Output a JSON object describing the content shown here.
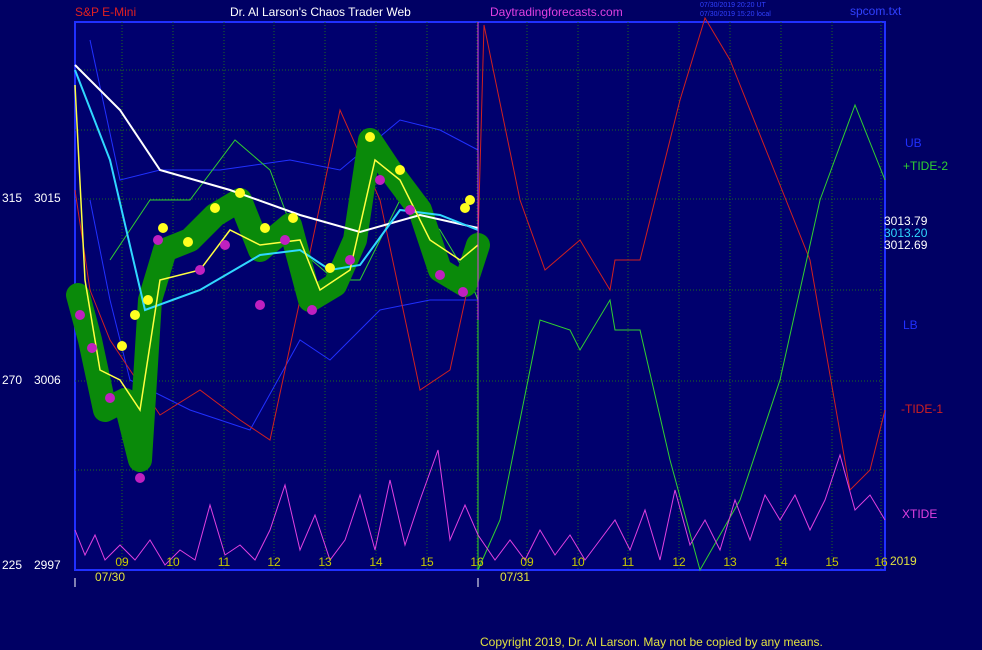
{
  "header": {
    "symbol": "S&P E-Mini",
    "title": "Dr. Al Larson's Chaos Trader Web",
    "site": "Daytradingforecasts.com",
    "timestamp_utc": "07/30/2019 20:20 UT",
    "timestamp_local": "07/30/2019 15:20 local",
    "file": "spcom.txt"
  },
  "y_labels": [
    {
      "left": "315",
      "right": "3015"
    },
    {
      "left": "270",
      "right": "3006"
    },
    {
      "left": "225",
      "right": "2997"
    }
  ],
  "x_labels": [
    "09",
    "10",
    "11",
    "12",
    "13",
    "14",
    "15",
    "16",
    "09",
    "10",
    "11",
    "12",
    "13",
    "14",
    "15",
    "16"
  ],
  "dates": [
    "07/30",
    "07/31"
  ],
  "year": "2019",
  "price_labels": [
    "3013.79",
    "3013.20",
    "3012.69"
  ],
  "right_labels": [
    "UB",
    "+TIDE-2",
    "LB",
    "-TIDE-1",
    "XTIDE"
  ],
  "copyright": "Copyright 2019, Dr. Al Larson. May not be copied by any means."
}
